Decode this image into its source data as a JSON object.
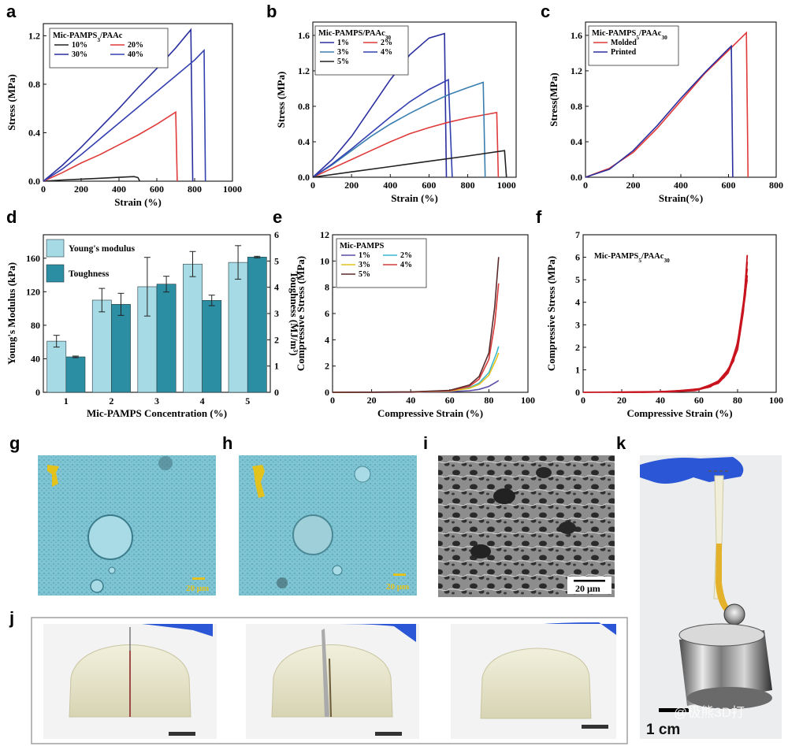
{
  "panel_letters": {
    "a": "a",
    "b": "b",
    "c": "c",
    "d": "d",
    "e": "e",
    "f": "f",
    "g": "g",
    "h": "h",
    "i": "i",
    "j": "j",
    "k": "k"
  },
  "photos": {
    "g": {
      "scalebar": "20 μm"
    },
    "h": {
      "scalebar": "20 μm"
    },
    "i": {
      "scalebar": "20 μm"
    },
    "k": {
      "scalebar": "1 cm",
      "watermark": "@极熊3D打"
    }
  },
  "chart_data": [
    {
      "id": "a",
      "type": "line",
      "xlabel": "Strain (%)",
      "ylabel": "Stress (MPa)",
      "xlim": [
        0,
        1000
      ],
      "ylim": [
        0,
        1.3
      ],
      "xticks": [
        0,
        200,
        400,
        600,
        800,
        1000
      ],
      "yticks": [
        0.0,
        0.4,
        0.8,
        1.2
      ],
      "legend_title": "Mic-PAMPS3/PAAc",
      "legend_cols": 2,
      "series": [
        {
          "name": "10%",
          "color": "#222222",
          "x": [
            0,
            100,
            200,
            300,
            400,
            480,
            500,
            510
          ],
          "y": [
            0,
            0.01,
            0.017,
            0.024,
            0.032,
            0.038,
            0.03,
            0
          ]
        },
        {
          "name": "20%",
          "color": "#e03a3a",
          "x": [
            0,
            100,
            200,
            300,
            400,
            500,
            600,
            700,
            708
          ],
          "y": [
            0,
            0.07,
            0.15,
            0.22,
            0.3,
            0.38,
            0.47,
            0.57,
            0
          ]
        },
        {
          "name": "30%",
          "color": "#2a2f9e",
          "x": [
            0,
            100,
            200,
            300,
            400,
            500,
            600,
            700,
            780,
            790
          ],
          "y": [
            0,
            0.13,
            0.28,
            0.44,
            0.6,
            0.77,
            0.93,
            1.1,
            1.25,
            0
          ]
        },
        {
          "name": "40%",
          "color": "#3340b0",
          "x": [
            0,
            100,
            200,
            300,
            400,
            500,
            600,
            700,
            800,
            850,
            857
          ],
          "y": [
            0,
            0.1,
            0.22,
            0.35,
            0.48,
            0.61,
            0.74,
            0.87,
            1.0,
            1.08,
            0
          ]
        }
      ]
    },
    {
      "id": "b",
      "type": "line",
      "xlabel": "Strain (%)",
      "ylabel": "Stress (MPa)",
      "xlim": [
        0,
        1050
      ],
      "ylim": [
        0,
        1.75
      ],
      "xticks": [
        0,
        200,
        400,
        600,
        800,
        1000
      ],
      "yticks": [
        0.0,
        0.4,
        0.8,
        1.2,
        1.6
      ],
      "legend_title": "Mic-PAMPS/PAAc30",
      "legend_cols": 2,
      "series": [
        {
          "name": "1%",
          "color": "#2a2f9e",
          "x": [
            0,
            100,
            200,
            300,
            400,
            500,
            600,
            680,
            690
          ],
          "y": [
            0,
            0.2,
            0.46,
            0.78,
            1.1,
            1.38,
            1.57,
            1.62,
            0
          ]
        },
        {
          "name": "2%",
          "color": "#e03a3a",
          "x": [
            0,
            100,
            200,
            300,
            400,
            500,
            600,
            700,
            800,
            900,
            950,
            958
          ],
          "y": [
            0,
            0.1,
            0.2,
            0.3,
            0.4,
            0.49,
            0.56,
            0.62,
            0.67,
            0.71,
            0.73,
            0
          ]
        },
        {
          "name": "3%",
          "color": "#3a7fb0",
          "x": [
            0,
            100,
            200,
            300,
            400,
            500,
            600,
            700,
            800,
            880,
            890
          ],
          "y": [
            0,
            0.14,
            0.3,
            0.46,
            0.6,
            0.72,
            0.83,
            0.93,
            1.01,
            1.07,
            0
          ]
        },
        {
          "name": "4%",
          "color": "#3340b0",
          "x": [
            0,
            100,
            200,
            300,
            400,
            500,
            600,
            700,
            720
          ],
          "y": [
            0,
            0.15,
            0.32,
            0.5,
            0.68,
            0.85,
            0.99,
            1.1,
            0
          ]
        },
        {
          "name": "5%",
          "color": "#222222",
          "x": [
            0,
            200,
            400,
            600,
            800,
            990,
            1000
          ],
          "y": [
            0,
            0.06,
            0.12,
            0.18,
            0.24,
            0.3,
            0
          ]
        }
      ]
    },
    {
      "id": "c",
      "type": "line",
      "xlabel": "Strain(%)",
      "ylabel": "Stress(MPa)",
      "xlim": [
        0,
        800
      ],
      "ylim": [
        0,
        1.75
      ],
      "xticks": [
        0,
        200,
        400,
        600,
        800
      ],
      "yticks": [
        0.0,
        0.4,
        0.8,
        1.2,
        1.6
      ],
      "legend_title": "Mic-PAMPS5/PAAc30",
      "legend_cols": 1,
      "series": [
        {
          "name": "Molded",
          "color": "#e03a3a",
          "x": [
            0,
            100,
            200,
            300,
            400,
            500,
            600,
            675,
            682
          ],
          "y": [
            0,
            0.1,
            0.28,
            0.55,
            0.86,
            1.17,
            1.43,
            1.63,
            0
          ]
        },
        {
          "name": "Printed",
          "color": "#2a2f9e",
          "x": [
            0,
            100,
            200,
            300,
            400,
            500,
            600,
            612,
            618
          ],
          "y": [
            0,
            0.09,
            0.3,
            0.58,
            0.89,
            1.18,
            1.45,
            1.48,
            0
          ]
        }
      ]
    },
    {
      "id": "d",
      "type": "bar",
      "xlabel": "Mic-PAMPS Concentration (%)",
      "ylabel": "Young's Modulus (kPa)",
      "y2label": "Toughness (MJ/m³)",
      "categories": [
        "1",
        "2",
        "3",
        "4",
        "5"
      ],
      "ylim": [
        0,
        188
      ],
      "y2lim": [
        0,
        6
      ],
      "yticks": [
        0,
        40,
        80,
        120,
        160
      ],
      "y2ticks": [
        0,
        1,
        2,
        3,
        4,
        5,
        6
      ],
      "series": [
        {
          "name": "Young's modulus",
          "color": "#a6dbe6",
          "values": [
            61,
            110,
            126,
            153,
            155
          ],
          "errors": [
            7,
            14,
            35,
            15,
            20
          ],
          "axis": "left"
        },
        {
          "name": "Toughness",
          "color": "#2b8ea3",
          "values": [
            1.35,
            3.35,
            4.12,
            3.5,
            5.15
          ],
          "errors": [
            0.03,
            0.42,
            0.3,
            0.2,
            0.03
          ],
          "axis": "right"
        }
      ]
    },
    {
      "id": "e",
      "type": "line",
      "xlabel": "Compressive Strain (%)",
      "ylabel": "Compressive Stress (MPa)",
      "xlim": [
        0,
        100
      ],
      "ylim": [
        0,
        12
      ],
      "xticks": [
        0,
        20,
        40,
        60,
        80,
        100
      ],
      "yticks": [
        0,
        2,
        4,
        6,
        8,
        10,
        12
      ],
      "legend_title": "Mic-PAMPS",
      "legend_cols": 2,
      "series": [
        {
          "name": "1%",
          "color": "#5a4fa8",
          "x": [
            0,
            20,
            40,
            60,
            70,
            75,
            80,
            84,
            85
          ],
          "y": [
            0,
            0,
            0.01,
            0.05,
            0.12,
            0.22,
            0.45,
            0.8,
            0.9
          ]
        },
        {
          "name": "2%",
          "color": "#39b7cf",
          "x": [
            0,
            20,
            40,
            60,
            70,
            75,
            80,
            84,
            85
          ],
          "y": [
            0,
            0.01,
            0.02,
            0.1,
            0.35,
            0.7,
            1.5,
            3.0,
            3.5
          ]
        },
        {
          "name": "3%",
          "color": "#e3c21c",
          "x": [
            0,
            20,
            40,
            60,
            70,
            75,
            80,
            84,
            85
          ],
          "y": [
            0,
            0.01,
            0.02,
            0.09,
            0.3,
            0.6,
            1.3,
            2.6,
            3.0
          ]
        },
        {
          "name": "4%",
          "color": "#d63a3a",
          "x": [
            0,
            20,
            40,
            60,
            70,
            75,
            80,
            83,
            85
          ],
          "y": [
            0,
            0.01,
            0.02,
            0.12,
            0.45,
            1.0,
            2.5,
            5.2,
            8.3
          ]
        },
        {
          "name": "5%",
          "color": "#5a2a2a",
          "x": [
            0,
            20,
            40,
            60,
            70,
            75,
            80,
            83,
            85
          ],
          "y": [
            0,
            0.01,
            0.03,
            0.15,
            0.55,
            1.2,
            3.0,
            6.5,
            10.3
          ]
        }
      ]
    },
    {
      "id": "f",
      "type": "line",
      "xlabel": "Compressive Strain (%)",
      "ylabel": "Compressive Stress (MPa)",
      "xlim": [
        0,
        100
      ],
      "ylim": [
        0,
        7
      ],
      "xticks": [
        0,
        20,
        40,
        60,
        80,
        100
      ],
      "yticks": [
        0,
        1,
        2,
        3,
        4,
        5,
        6,
        7
      ],
      "annotation": "Mic-PAMPS5/PAAc30",
      "series": [
        {
          "name": "",
          "color": "#c8141e",
          "x": [
            0,
            20,
            40,
            60,
            70,
            75,
            80,
            83,
            85
          ],
          "y": [
            0,
            0.01,
            0.03,
            0.12,
            0.4,
            0.85,
            1.9,
            3.6,
            6.1
          ]
        },
        {
          "name": "",
          "color": "#c8141e",
          "x": [
            15,
            30,
            45,
            60,
            70,
            75,
            80,
            83,
            85
          ],
          "y": [
            0,
            0.01,
            0.04,
            0.15,
            0.45,
            0.95,
            2.1,
            3.9,
            5.8
          ]
        },
        {
          "name": "",
          "color": "#c8141e",
          "x": [
            20,
            35,
            50,
            62,
            70,
            76,
            80,
            83,
            85
          ],
          "y": [
            0,
            0.01,
            0.05,
            0.18,
            0.5,
            1.1,
            2.2,
            4.0,
            5.5
          ]
        },
        {
          "name": "",
          "color": "#c8141e",
          "x": [
            25,
            40,
            55,
            65,
            72,
            77,
            81,
            84,
            85
          ],
          "y": [
            0,
            0.02,
            0.07,
            0.22,
            0.6,
            1.3,
            2.5,
            4.3,
            5.2
          ]
        },
        {
          "name": "",
          "color": "#c8141e",
          "x": [
            30,
            45,
            58,
            66,
            73,
            78,
            81,
            84,
            85
          ],
          "y": [
            0,
            0.02,
            0.08,
            0.25,
            0.65,
            1.4,
            2.7,
            4.5,
            5.0
          ]
        }
      ]
    }
  ]
}
